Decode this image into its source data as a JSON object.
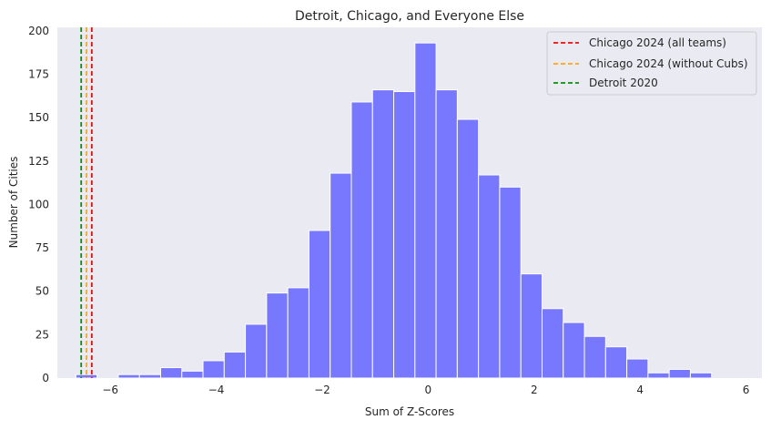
{
  "chart_data": {
    "type": "histogram",
    "title": "Detroit, Chicago, and Everyone Else",
    "xlabel": "Sum of Z-Scores",
    "ylabel": "Number of Cities",
    "xlim": [
      -7.0,
      6.3
    ],
    "ylim": [
      0,
      202
    ],
    "xticks": [
      -6,
      -4,
      -2,
      0,
      2,
      4,
      6
    ],
    "xtick_labels": [
      "−6",
      "−4",
      "−2",
      "0",
      "2",
      "4",
      "6"
    ],
    "yticks": [
      0,
      25,
      50,
      75,
      100,
      125,
      150,
      175,
      200
    ],
    "ytick_labels": [
      "0",
      "25",
      "50",
      "75",
      "100",
      "125",
      "150",
      "175",
      "200"
    ],
    "grid": false,
    "bar_color": "#7878ff",
    "background_color": "#eaeaf2",
    "bins": {
      "edges": [
        -6.65,
        -6.25,
        -5.85,
        -5.45,
        -5.05,
        -4.65,
        -4.25,
        -3.85,
        -3.45,
        -3.05,
        -2.65,
        -2.25,
        -1.85,
        -1.45,
        -1.05,
        -0.65,
        -0.25,
        0.15,
        0.55,
        0.95,
        1.35,
        1.75,
        2.15,
        2.55,
        2.95,
        3.35,
        3.75,
        4.15,
        4.55,
        4.95,
        5.35,
        5.65
      ],
      "counts": [
        2,
        0,
        2,
        2,
        6,
        4,
        10,
        15,
        31,
        49,
        52,
        85,
        118,
        159,
        166,
        165,
        193,
        166,
        149,
        117,
        110,
        60,
        40,
        32,
        24,
        18,
        11,
        3,
        5,
        3,
        0
      ]
    },
    "reference_lines": [
      {
        "name": "Chicago 2024 (all teams)",
        "x": -6.35,
        "color": "#e3120b"
      },
      {
        "name": "Chicago 2024 (without Cubs)",
        "x": -6.45,
        "color": "#f5a623"
      },
      {
        "name": "Detroit 2020",
        "x": -6.55,
        "color": "#118a11"
      }
    ],
    "legend_position": "top-right"
  }
}
